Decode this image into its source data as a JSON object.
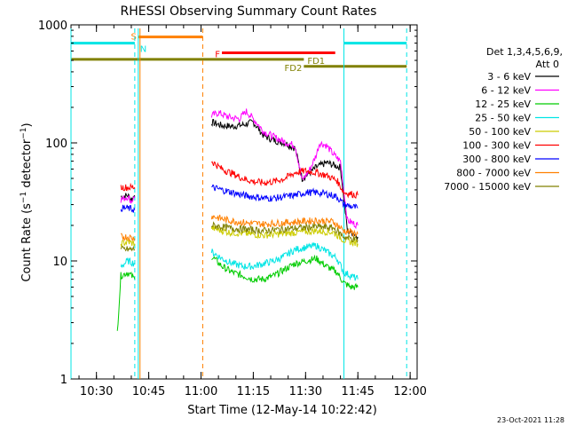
{
  "chart_data": {
    "type": "line",
    "title": "RHESSI Observing Summary Count Rates",
    "xlabel": "Start Time (12-May-14 10:22:42)",
    "ylabel": "Count Rate (s⁻¹ detector⁻¹)",
    "ylabel_main": "Count Rate (s",
    "ylabel_exp1": "−1",
    "ylabel_mid": " detector",
    "ylabel_exp2": "−1",
    "ylabel_end": ")",
    "y_scale": "log",
    "xlim": [
      "10:22:42",
      "12:02:00"
    ],
    "ylim": [
      1,
      1000
    ],
    "x_ticks": [
      "10:30",
      "10:45",
      "11:00",
      "11:15",
      "11:30",
      "11:45",
      "12:00"
    ],
    "y_ticks": [
      "1",
      "10",
      "100",
      "1000"
    ],
    "footer_date": "23-Oct-2021 11:28",
    "legend": {
      "placement": "right",
      "header_line1": "Det 1,3,4,5,6,9,",
      "header_line2": "Att 0",
      "entries": [
        {
          "label": "3 - 6 keV",
          "color": "#000000"
        },
        {
          "label": "6 - 12 keV",
          "color": "#ff00ff"
        },
        {
          "label": "12 - 25 keV",
          "color": "#00cc00"
        },
        {
          "label": "25 - 50 keV",
          "color": "#00e5e5"
        },
        {
          "label": "50 - 100 keV",
          "color": "#cccc00"
        },
        {
          "label": "100 - 300 keV",
          "color": "#ff0000"
        },
        {
          "label": "300 - 800 keV",
          "color": "#0000ff"
        },
        {
          "label": "800 - 7000 keV",
          "color": "#ff8000"
        },
        {
          "label": "7000 - 15000 keV",
          "color": "#808000"
        }
      ]
    },
    "flags": [
      {
        "label": "",
        "color": "#00e5e5",
        "start": "10:22:42",
        "end": "10:41:00",
        "level": 700
      },
      {
        "label": "",
        "color": "#00e5e5",
        "start": "11:41:00",
        "end": "11:59:00",
        "level": 700
      },
      {
        "label": "S",
        "color": "#ff8000",
        "start": "10:42:00",
        "end": "11:00:30",
        "level": 790
      },
      {
        "label": "N",
        "color": "#00e5e5",
        "start": "10:42:00",
        "end": "10:42:00",
        "level": 700
      },
      {
        "label": "F",
        "color": "#ff0000",
        "start": "11:06:00",
        "end": "11:38:30",
        "level": 580
      },
      {
        "label": "FD1",
        "color": "#808000",
        "start": "10:22:42",
        "end": "11:29:30",
        "level": 510
      },
      {
        "label": "FD2",
        "color": "#808000",
        "start": "11:29:30",
        "end": "11:59:00",
        "level": 445
      }
    ],
    "vlines": [
      {
        "time": "10:22:42",
        "color": "#00e5e5",
        "style": "solid"
      },
      {
        "time": "10:41:00",
        "color": "#00e5e5",
        "style": "dashed"
      },
      {
        "time": "10:42:00",
        "color": "#00e5e5",
        "style": "solid"
      },
      {
        "time": "10:42:30",
        "color": "#ff8000",
        "style": "solid"
      },
      {
        "time": "11:00:30",
        "color": "#ff8000",
        "style": "dashed"
      },
      {
        "time": "11:41:00",
        "color": "#00e5e5",
        "style": "solid"
      },
      {
        "time": "11:59:00",
        "color": "#00e5e5",
        "style": "dashed"
      }
    ],
    "series": [
      {
        "name": "3 - 6 keV",
        "color": "#000000",
        "segments": [
          {
            "t": [
              "10:37:00",
              "10:39:00",
              "10:40:00",
              "10:41:00"
            ],
            "v": [
              35,
              36,
              33,
              36
            ]
          },
          {
            "t": [
              "11:03:00",
              "11:06:00",
              "11:09:00",
              "11:12:00",
              "11:15:00",
              "11:18:00",
              "11:21:00",
              "11:24:00",
              "11:27:00",
              "11:29:00",
              "11:31:00",
              "11:33:00",
              "11:36:00",
              "11:38:00",
              "11:40:00",
              "11:42:00",
              "11:44:00",
              "11:45:00"
            ],
            "v": [
              150,
              140,
              138,
              142,
              150,
              115,
              105,
              100,
              90,
              50,
              55,
              62,
              68,
              65,
              62,
              18,
              17,
              16
            ]
          }
        ]
      },
      {
        "name": "6 - 12 keV",
        "color": "#ff00ff",
        "segments": [
          {
            "t": [
              "10:37:00",
              "10:39:00",
              "10:40:00",
              "10:41:00"
            ],
            "v": [
              33,
              35,
              32,
              35
            ]
          },
          {
            "t": [
              "11:03:00",
              "11:05:00",
              "11:08:00",
              "11:11:00",
              "11:13:00",
              "11:15:00",
              "11:18:00",
              "11:21:00",
              "11:24:00",
              "11:27:00",
              "11:29:00",
              "11:31:00",
              "11:33:00",
              "11:34:00",
              "11:36:00",
              "11:38:00",
              "11:40:00",
              "11:42:00",
              "11:45:00"
            ],
            "v": [
              170,
              180,
              165,
              160,
              185,
              160,
              125,
              112,
              102,
              95,
              48,
              58,
              78,
              100,
              95,
              80,
              70,
              22,
              20
            ]
          }
        ]
      },
      {
        "name": "12 - 25 keV",
        "color": "#00cc00",
        "segments": [
          {
            "t": [
              "10:36:00",
              "10:37:00",
              "10:39:00",
              "10:41:00"
            ],
            "v": [
              2.5,
              7.5,
              8,
              7
            ]
          },
          {
            "t": [
              "11:03:00",
              "11:06:00",
              "11:09:00",
              "11:12:00",
              "11:15:00",
              "11:18:00",
              "11:21:00",
              "11:24:00",
              "11:27:00",
              "11:30:00",
              "11:33:00",
              "11:36:00",
              "11:39:00",
              "11:41:00",
              "11:43:00",
              "11:45:00"
            ],
            "v": [
              11,
              9,
              8,
              7.5,
              7,
              7,
              7.5,
              8.5,
              9.5,
              10,
              10.5,
              9,
              8,
              6.5,
              6,
              6
            ]
          }
        ]
      },
      {
        "name": "25 - 50 keV",
        "color": "#00e5e5",
        "segments": [
          {
            "t": [
              "10:37:00",
              "10:39:00",
              "10:41:00"
            ],
            "v": [
              9,
              10,
              9.5
            ]
          },
          {
            "t": [
              "11:03:00",
              "11:06:00",
              "11:09:00",
              "11:12:00",
              "11:15:00",
              "11:18:00",
              "11:21:00",
              "11:24:00",
              "11:27:00",
              "11:30:00",
              "11:33:00",
              "11:36:00",
              "11:39:00",
              "11:41:00",
              "11:43:00",
              "11:45:00"
            ],
            "v": [
              12,
              10.5,
              9.5,
              9,
              9,
              9.5,
              10,
              11,
              12.5,
              13,
              13.5,
              12,
              10.5,
              8,
              7.5,
              7
            ]
          }
        ]
      },
      {
        "name": "50 - 100 keV",
        "color": "#cccc00",
        "segments": [
          {
            "t": [
              "10:37:00",
              "10:39:00",
              "10:41:00"
            ],
            "v": [
              14,
              14.5,
              14
            ]
          },
          {
            "t": [
              "11:03:00",
              "11:08:00",
              "11:13:00",
              "11:18:00",
              "11:23:00",
              "11:28:00",
              "11:33:00",
              "11:38:00",
              "11:41:00",
              "11:45:00"
            ],
            "v": [
              19,
              17.5,
              17,
              16.5,
              17,
              17.5,
              18,
              17.5,
              15,
              14
            ]
          }
        ]
      },
      {
        "name": "100 - 300 keV",
        "color": "#ff0000",
        "segments": [
          {
            "t": [
              "10:37:00",
              "10:39:00",
              "10:41:00"
            ],
            "v": [
              42,
              42,
              42
            ]
          },
          {
            "t": [
              "11:03:00",
              "11:06:00",
              "11:09:00",
              "11:12:00",
              "11:15:00",
              "11:18:00",
              "11:21:00",
              "11:24:00",
              "11:27:00",
              "11:30:00",
              "11:33:00",
              "11:36:00",
              "11:39:00",
              "11:41:00",
              "11:43:00",
              "11:45:00"
            ],
            "v": [
              70,
              60,
              55,
              50,
              47,
              46,
              47,
              50,
              56,
              58,
              56,
              53,
              48,
              38,
              37,
              36
            ]
          }
        ]
      },
      {
        "name": "300 - 800 keV",
        "color": "#0000ff",
        "segments": [
          {
            "t": [
              "10:37:00",
              "10:39:00",
              "10:41:00"
            ],
            "v": [
              28,
              28,
              27
            ]
          },
          {
            "t": [
              "11:03:00",
              "11:06:00",
              "11:09:00",
              "11:12:00",
              "11:15:00",
              "11:18:00",
              "11:21:00",
              "11:24:00",
              "11:27:00",
              "11:30:00",
              "11:33:00",
              "11:36:00",
              "11:39:00",
              "11:41:00",
              "11:43:00",
              "11:45:00"
            ],
            "v": [
              42,
              40,
              38,
              36,
              35,
              34,
              34,
              35,
              36,
              38,
              38,
              37,
              35,
              30,
              29,
              28
            ]
          }
        ]
      },
      {
        "name": "800 - 7000 keV",
        "color": "#ff8000",
        "segments": [
          {
            "t": [
              "10:37:00",
              "10:39:00",
              "10:41:00"
            ],
            "v": [
              16,
              16,
              15.5
            ]
          },
          {
            "t": [
              "11:03:00",
              "11:08:00",
              "11:13:00",
              "11:18:00",
              "11:23:00",
              "11:28:00",
              "11:33:00",
              "11:38:00",
              "11:41:00",
              "11:45:00"
            ],
            "v": [
              24,
              22,
              21,
              20.5,
              21,
              21.5,
              22,
              21.5,
              18,
              17
            ]
          }
        ]
      },
      {
        "name": "7000 - 15000 keV",
        "color": "#808000",
        "segments": [
          {
            "t": [
              "10:37:00",
              "10:39:00",
              "10:41:00"
            ],
            "v": [
              12.5,
              12.5,
              12.5
            ]
          },
          {
            "t": [
              "11:03:00",
              "11:08:00",
              "11:13:00",
              "11:18:00",
              "11:23:00",
              "11:28:00",
              "11:33:00",
              "11:38:00",
              "11:41:00",
              "11:45:00"
            ],
            "v": [
              20,
              19,
              18.5,
              18,
              18.5,
              19,
              19.5,
              19,
              16,
              15
            ]
          }
        ]
      }
    ]
  }
}
